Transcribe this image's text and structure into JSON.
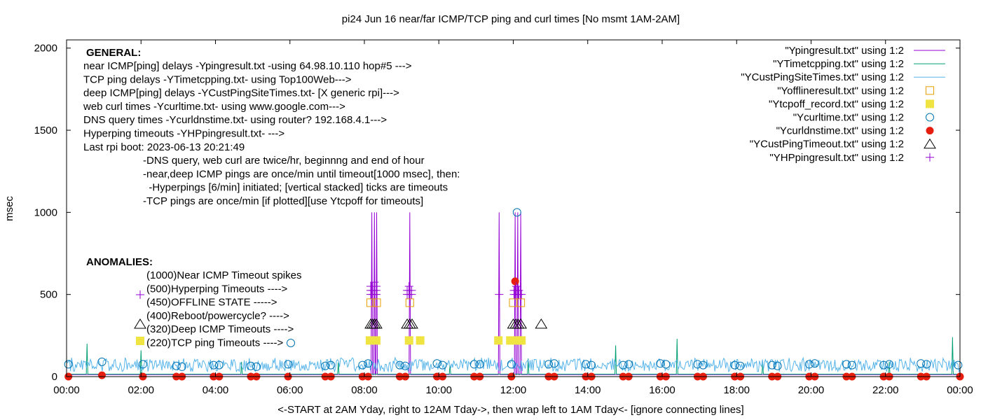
{
  "chart_data": {
    "type": "line",
    "title": "pi24 Jun 16  near/far ICMP/TCP ping and curl times [No msmt 1AM-2AM]",
    "xlabel": "<-START at 2AM Yday, right to 12AM Tday->, then wrap left to 1AM Tday<- [ignore connecting lines]",
    "ylabel": "msec",
    "xlim": [
      0,
      24
    ],
    "ylim": [
      0,
      2050
    ],
    "x_ticks": [
      0,
      2,
      4,
      6,
      8,
      10,
      12,
      14,
      16,
      18,
      20,
      22,
      24
    ],
    "x_tick_labels": [
      "00:00",
      "02:00",
      "04:00",
      "06:00",
      "08:00",
      "10:00",
      "12:00",
      "14:00",
      "16:00",
      "18:00",
      "20:00",
      "22:00",
      "00:00"
    ],
    "y_ticks": [
      0,
      500,
      1000,
      1500,
      2000
    ],
    "y_tick_labels": [
      "0",
      "500",
      "1000",
      "1500",
      "2000"
    ],
    "grid": false,
    "legend_position": "top-right",
    "annotations": {
      "general_heading": "GENERAL:",
      "general_lines": [
        "near ICMP[ping] delays -Ypingresult.txt -using 64.98.10.110 hop#5 --->",
        "TCP ping delays -YTimetcpping.txt- using Top100Web--->",
        "deep ICMP[ping] delays -YCustPingSiteTimes.txt- [X generic rpi]--->",
        "web curl times -Ycurltime.txt- using www.google.com--->",
        "DNS query times -Ycurldnstime.txt- using router? 192.168.4.1--->",
        "Hyperping timeouts -YHPpingresult.txt- --->",
        "Last rpi boot: 2023-06-13 20:21:49"
      ],
      "notes_lines": [
        "-DNS query, web curl are twice/hr, beginnng and end of hour",
        "-near,deep ICMP pings are once/min until timeout[1000 msec], then:",
        "  -Hyperpings [6/min] initiated; [vertical stacked] ticks are timeouts",
        "-TCP pings are once/min [if plotted][use Ytcpoff for timeouts]"
      ],
      "anomalies_heading": "ANOMALIES:",
      "anomaly_lines": [
        "(1000)Near ICMP Timeout spikes",
        "(500)Hyperping Timeouts ---->",
        "(450)OFFLINE STATE ----->",
        "(400)Reboot/powercycle? ---->",
        "(320)Deep ICMP Timeouts ---->",
        "(220)TCP ping Timeouts ---->"
      ]
    },
    "series": [
      {
        "name": "\"Ypingresult.txt\" using 1:2",
        "style": "line",
        "color": "#9400d3",
        "baseline": 12,
        "spikes": [
          [
            8.2,
            1000
          ],
          [
            8.27,
            1000
          ],
          [
            8.33,
            1000
          ],
          [
            9.22,
            1000
          ],
          [
            11.62,
            1000
          ],
          [
            12.05,
            1000
          ],
          [
            12.12,
            1000
          ],
          [
            12.2,
            1000
          ]
        ]
      },
      {
        "name": "\"YTimetcpping.txt\" using 1:2",
        "style": "line",
        "color": "#009e73",
        "baseline": 15,
        "spikes": [
          [
            0.55,
            200
          ],
          [
            2.0,
            160
          ],
          [
            4.7,
            90
          ],
          [
            7.3,
            85
          ],
          [
            10.3,
            70
          ],
          [
            12.4,
            110
          ],
          [
            14.75,
            190
          ],
          [
            16.4,
            230
          ],
          [
            18.7,
            80
          ],
          [
            22.1,
            90
          ],
          [
            23.8,
            240
          ]
        ]
      },
      {
        "name": "\"YCustPingSiteTimes.txt\" using 1:2",
        "style": "line",
        "color": "#56b4e9",
        "baseline": 30,
        "noise_max": 90
      },
      {
        "name": "\"Yofflineresult.txt\" using 1:2",
        "style": "open-square",
        "color": "#e69f00",
        "points": [
          [
            8.17,
            450
          ],
          [
            8.33,
            450
          ],
          [
            9.22,
            450
          ],
          [
            12.0,
            450
          ],
          [
            12.2,
            450
          ]
        ]
      },
      {
        "name": "\"Ytcpoff_record.txt\" using 1:2",
        "style": "filled-square",
        "color": "#f0e442",
        "points": [
          [
            8.15,
            220
          ],
          [
            8.32,
            220
          ],
          [
            9.2,
            220
          ],
          [
            9.5,
            220
          ],
          [
            11.6,
            220
          ],
          [
            11.92,
            220
          ],
          [
            12.1,
            220
          ],
          [
            12.22,
            220
          ]
        ]
      },
      {
        "name": "\"Ycurltime.txt\" using 1:2",
        "style": "open-circle",
        "color": "#0072b2",
        "points": [
          [
            0.05,
            75
          ],
          [
            0.95,
            90
          ],
          [
            2.05,
            75
          ],
          [
            2.95,
            65
          ],
          [
            3.1,
            60
          ],
          [
            3.95,
            70
          ],
          [
            4.1,
            70
          ],
          [
            4.95,
            65
          ],
          [
            5.1,
            60
          ],
          [
            5.95,
            75
          ],
          [
            6.95,
            65
          ],
          [
            7.1,
            70
          ],
          [
            7.95,
            70
          ],
          [
            8.1,
            80
          ],
          [
            8.95,
            70
          ],
          [
            9.1,
            65
          ],
          [
            9.95,
            80
          ],
          [
            10.1,
            70
          ],
          [
            10.95,
            75
          ],
          [
            11.1,
            75
          ],
          [
            11.95,
            75
          ],
          [
            12.1,
            1000
          ],
          [
            12.95,
            75
          ],
          [
            13.1,
            80
          ],
          [
            13.95,
            75
          ],
          [
            14.1,
            70
          ],
          [
            14.95,
            70
          ],
          [
            15.1,
            75
          ],
          [
            15.95,
            80
          ],
          [
            16.1,
            75
          ],
          [
            16.95,
            75
          ],
          [
            17.1,
            70
          ],
          [
            17.95,
            70
          ],
          [
            18.1,
            65
          ],
          [
            18.95,
            70
          ],
          [
            19.1,
            65
          ],
          [
            19.95,
            75
          ],
          [
            20.1,
            80
          ],
          [
            20.95,
            75
          ],
          [
            21.1,
            70
          ],
          [
            21.95,
            70
          ],
          [
            22.1,
            75
          ],
          [
            22.95,
            80
          ],
          [
            23.1,
            75
          ],
          [
            23.95,
            70
          ]
        ]
      },
      {
        "name": "\"Ycurldnstime.txt\" using 1:2",
        "style": "filled-circle",
        "color": "#e51e10",
        "points": [
          [
            0.05,
            0
          ],
          [
            0.95,
            8
          ],
          [
            2.05,
            0
          ],
          [
            2.95,
            0
          ],
          [
            3.1,
            0
          ],
          [
            3.95,
            0
          ],
          [
            4.1,
            0
          ],
          [
            4.95,
            0
          ],
          [
            5.1,
            0
          ],
          [
            5.95,
            0
          ],
          [
            6.95,
            0
          ],
          [
            7.1,
            0
          ],
          [
            7.95,
            0
          ],
          [
            8.1,
            0
          ],
          [
            8.95,
            0
          ],
          [
            9.1,
            0
          ],
          [
            9.95,
            0
          ],
          [
            10.1,
            0
          ],
          [
            10.95,
            0
          ],
          [
            11.1,
            0
          ],
          [
            11.95,
            0
          ],
          [
            12.05,
            580
          ],
          [
            12.95,
            0
          ],
          [
            13.1,
            0
          ],
          [
            13.95,
            0
          ],
          [
            14.1,
            0
          ],
          [
            14.95,
            0
          ],
          [
            15.1,
            0
          ],
          [
            15.95,
            0
          ],
          [
            16.1,
            0
          ],
          [
            16.95,
            0
          ],
          [
            17.1,
            0
          ],
          [
            17.95,
            0
          ],
          [
            18.1,
            0
          ],
          [
            18.95,
            0
          ],
          [
            19.1,
            0
          ],
          [
            19.95,
            0
          ],
          [
            20.1,
            0
          ],
          [
            20.95,
            0
          ],
          [
            21.1,
            0
          ],
          [
            21.95,
            0
          ],
          [
            22.1,
            0
          ],
          [
            22.95,
            0
          ],
          [
            23.1,
            0
          ],
          [
            24.0,
            0
          ]
        ]
      },
      {
        "name": "\"YCustPingTimeout.txt\" using 1:2",
        "style": "open-triangle",
        "color": "#000000",
        "points": [
          [
            8.17,
            320
          ],
          [
            8.22,
            320
          ],
          [
            8.27,
            320
          ],
          [
            8.32,
            320
          ],
          [
            9.15,
            320
          ],
          [
            9.22,
            320
          ],
          [
            9.28,
            320
          ],
          [
            12.0,
            320
          ],
          [
            12.07,
            320
          ],
          [
            12.13,
            320
          ],
          [
            12.2,
            320
          ],
          [
            12.75,
            320
          ]
        ]
      },
      {
        "name": "\"YHPpingresult.txt\" using 1:2",
        "style": "plus",
        "color": "#9400d3",
        "points": [
          [
            8.17,
            500
          ],
          [
            8.17,
            525
          ],
          [
            8.17,
            550
          ],
          [
            8.22,
            500
          ],
          [
            8.22,
            525
          ],
          [
            8.22,
            550
          ],
          [
            8.27,
            500
          ],
          [
            8.27,
            525
          ],
          [
            8.27,
            550
          ],
          [
            8.27,
            575
          ],
          [
            8.32,
            500
          ],
          [
            8.32,
            525
          ],
          [
            8.32,
            550
          ],
          [
            9.15,
            500
          ],
          [
            9.15,
            525
          ],
          [
            9.2,
            500
          ],
          [
            9.2,
            525
          ],
          [
            9.2,
            550
          ],
          [
            9.27,
            500
          ],
          [
            9.27,
            525
          ],
          [
            11.62,
            500
          ],
          [
            12.02,
            500
          ],
          [
            12.02,
            525
          ],
          [
            12.08,
            500
          ],
          [
            12.08,
            525
          ],
          [
            12.08,
            550
          ],
          [
            12.15,
            500
          ],
          [
            12.15,
            525
          ],
          [
            12.22,
            500
          ]
        ]
      }
    ],
    "key_samples": [
      {
        "marker": "plus",
        "color": "#9400d3"
      },
      {
        "marker": "open-triangle",
        "color": "#000000"
      },
      {
        "marker": "filled-square",
        "color": "#f0e442"
      },
      {
        "marker": "open-circle",
        "color": "#0072b2"
      }
    ]
  }
}
